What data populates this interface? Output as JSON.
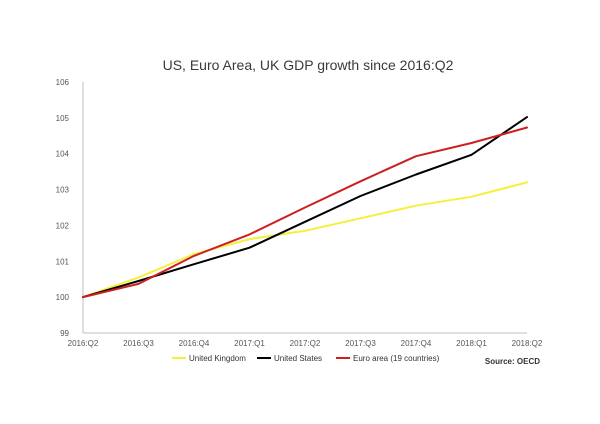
{
  "chart_data": {
    "type": "line",
    "title": "US, Euro Area, UK GDP growth since 2016:Q2",
    "source": "Source: OECD",
    "xlabel": "",
    "ylabel": "",
    "categories": [
      "2016:Q2",
      "2016:Q3",
      "2016:Q4",
      "2017:Q1",
      "2017:Q2",
      "2017:Q3",
      "2017:Q4",
      "2018:Q1",
      "2018:Q2"
    ],
    "ylim": [
      99,
      106
    ],
    "yticks": [
      "99",
      "100",
      "101",
      "102",
      "103",
      "104",
      "105",
      "106"
    ],
    "grid": false,
    "legend_position": "bottom",
    "series": [
      {
        "name": "United Kingdom",
        "color": "#f5f03c",
        "values": [
          100.0,
          100.55,
          101.2,
          101.62,
          101.85,
          102.2,
          102.55,
          102.8,
          103.2
        ]
      },
      {
        "name": "United States",
        "color": "#000000",
        "values": [
          100.0,
          100.45,
          100.92,
          101.38,
          102.1,
          102.82,
          103.42,
          103.97,
          105.02
        ]
      },
      {
        "name": "Euro area (19 countries)",
        "color": "#cc1f1f",
        "values": [
          100.0,
          100.37,
          101.15,
          101.75,
          102.5,
          103.23,
          103.93,
          104.3,
          104.73
        ]
      }
    ]
  }
}
